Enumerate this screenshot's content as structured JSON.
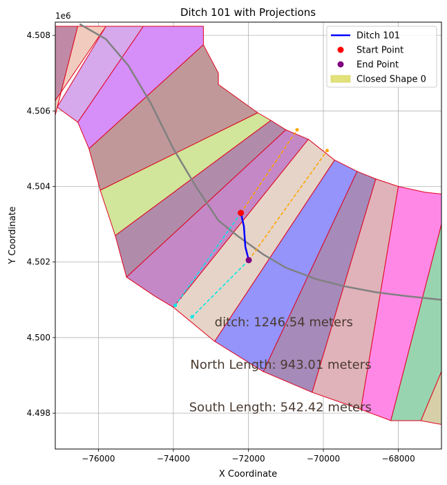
{
  "chart_data": {
    "type": "line",
    "title": "Ditch 101 with Projections",
    "xlabel": "X Coordinate",
    "ylabel": "Y Coordinate",
    "y_offset_label": "1e6",
    "xlim": [
      -77150,
      -66850
    ],
    "ylim": [
      4497050,
      4508350
    ],
    "x_ticks": [
      -76000,
      -74000,
      -72000,
      -70000,
      -68000
    ],
    "x_tick_labels": [
      "−76000",
      "−74000",
      "−72000",
      "−70000",
      "−68000"
    ],
    "y_ticks": [
      4498000,
      4500000,
      4502000,
      4504000,
      4506000,
      4508000
    ],
    "y_tick_labels": [
      "4.498",
      "4.500",
      "4.502",
      "4.504",
      "4.506",
      "4.508"
    ],
    "grid": true,
    "legend_position": "upper right",
    "legend": [
      {
        "label": "Ditch 101",
        "kind": "line",
        "color": "#0000ff"
      },
      {
        "label": "Start Point",
        "kind": "point",
        "color": "#ff0000"
      },
      {
        "label": "End Point",
        "kind": "point",
        "color": "#800080"
      },
      {
        "label": "Closed Shape 0",
        "kind": "patch",
        "color": "#e2e17a"
      }
    ],
    "bands": [
      {
        "color": "#c08aa6",
        "pts": [
          [
            -77200,
            4508240
          ],
          [
            -76550,
            4508240
          ],
          [
            -77200,
            4505700
          ],
          [
            -77200,
            4506600
          ],
          [
            -77200,
            4508240
          ]
        ]
      },
      {
        "color": "#f1cbbd",
        "pts": [
          [
            -76550,
            4508240
          ],
          [
            -75800,
            4508240
          ],
          [
            -77200,
            4506200
          ],
          [
            -77200,
            4505700
          ]
        ]
      },
      {
        "color": "#d6a8ec",
        "pts": [
          [
            -75800,
            4508240
          ],
          [
            -74800,
            4508240
          ],
          [
            -76550,
            4505700
          ],
          [
            -77100,
            4506100
          ]
        ]
      },
      {
        "color": "#d68ef9",
        "pts": [
          [
            -74800,
            4508240
          ],
          [
            -73200,
            4508240
          ],
          [
            -73200,
            4507750
          ],
          [
            -76250,
            4505000
          ],
          [
            -76550,
            4505700
          ]
        ]
      },
      {
        "color": "#c0989a",
        "pts": [
          [
            -73200,
            4507750
          ],
          [
            -72800,
            4507000
          ],
          [
            -72800,
            4506700
          ],
          [
            -71750,
            4505950
          ],
          [
            -75950,
            4503900
          ],
          [
            -76100,
            4504450
          ],
          [
            -76250,
            4505000
          ]
        ]
      },
      {
        "color": "#d1e59b",
        "pts": [
          [
            -71750,
            4505950
          ],
          [
            -71400,
            4505750
          ],
          [
            -75550,
            4502700
          ],
          [
            -75950,
            4503900
          ]
        ]
      },
      {
        "color": "#b08caa",
        "pts": [
          [
            -71400,
            4505750
          ],
          [
            -71000,
            4505500
          ],
          [
            -75250,
            4501600
          ],
          [
            -75550,
            4502700
          ]
        ]
      },
      {
        "color": "#c488c6",
        "pts": [
          [
            -71000,
            4505500
          ],
          [
            -70400,
            4505250
          ],
          [
            -74000,
            4500800
          ],
          [
            -74500,
            4501100
          ],
          [
            -75250,
            4501600
          ]
        ]
      },
      {
        "color": "#e6d4c8",
        "pts": [
          [
            -70400,
            4505250
          ],
          [
            -69700,
            4504700
          ],
          [
            -72900,
            4499900
          ],
          [
            -74000,
            4500800
          ]
        ]
      },
      {
        "color": "#9494fa",
        "pts": [
          [
            -69700,
            4504700
          ],
          [
            -69100,
            4504400
          ],
          [
            -71600,
            4499100
          ],
          [
            -72900,
            4499900
          ]
        ]
      },
      {
        "color": "#a58aba",
        "pts": [
          [
            -69100,
            4504400
          ],
          [
            -68600,
            4504200
          ],
          [
            -70300,
            4498550
          ],
          [
            -71600,
            4499100
          ]
        ]
      },
      {
        "color": "#e0b2ba",
        "pts": [
          [
            -68600,
            4504200
          ],
          [
            -68000,
            4504000
          ],
          [
            -69000,
            4498100
          ],
          [
            -70300,
            4498550
          ]
        ]
      },
      {
        "color": "#ff88e6",
        "pts": [
          [
            -68000,
            4504000
          ],
          [
            -67300,
            4503850
          ],
          [
            -66850,
            4503800
          ],
          [
            -66850,
            4503000
          ],
          [
            -68200,
            4497800
          ],
          [
            -69000,
            4498100
          ]
        ]
      },
      {
        "color": "#98d4b0",
        "pts": [
          [
            -66850,
            4503000
          ],
          [
            -66850,
            4499100
          ],
          [
            -67400,
            4497800
          ],
          [
            -68200,
            4497800
          ]
        ]
      },
      {
        "color": "#d6cfa8",
        "pts": [
          [
            -66850,
            4499100
          ],
          [
            -66850,
            4497700
          ],
          [
            -67400,
            4497800
          ]
        ]
      }
    ],
    "band_edge_color": "#e0001b",
    "trend_line": {
      "color": "#808080",
      "x": [
        -76500,
        -75800,
        -75200,
        -74600,
        -74000,
        -73400,
        -72800,
        -72300,
        -71600,
        -71000,
        -70200,
        -69400,
        -68600,
        -67800,
        -66850
      ],
      "y": [
        4508300,
        4507900,
        4507200,
        4506200,
        4505000,
        4504000,
        4503100,
        4502700,
        4502200,
        4501850,
        4501550,
        4501350,
        4501200,
        4501100,
        4501000
      ]
    },
    "ditch": {
      "name": "Ditch 101",
      "x": [
        -72200,
        -72120,
        -72080,
        -71990
      ],
      "y": [
        4503300,
        4502950,
        4502400,
        4502050
      ]
    },
    "start_point": {
      "name": "Start Point",
      "x": -72200,
      "y": 4503300
    },
    "end_point": {
      "name": "End Point",
      "x": -71990,
      "y": 4502050
    },
    "projections": [
      {
        "color": "#ffa500",
        "x": [
          -72200,
          -70700
        ],
        "y": [
          4503300,
          4505500
        ]
      },
      {
        "color": "#ffa500",
        "x": [
          -71990,
          -69900
        ],
        "y": [
          4502050,
          4504950
        ]
      },
      {
        "color": "#00e8e8",
        "x": [
          -72200,
          -73950
        ],
        "y": [
          4503300,
          4500850
        ]
      },
      {
        "color": "#00e8e8",
        "x": [
          -71990,
          -73500
        ],
        "y": [
          4502050,
          4500550
        ]
      }
    ],
    "annotations": [
      {
        "text": "ditch: 1246.54 meters",
        "x": -72900,
        "y": 4500300
      },
      {
        "text": "North Length: 943.01 meters",
        "x": -73550,
        "y": 4499170
      },
      {
        "text": "South Length: 542.42 meters",
        "x": -73580,
        "y": 4498050
      }
    ]
  }
}
